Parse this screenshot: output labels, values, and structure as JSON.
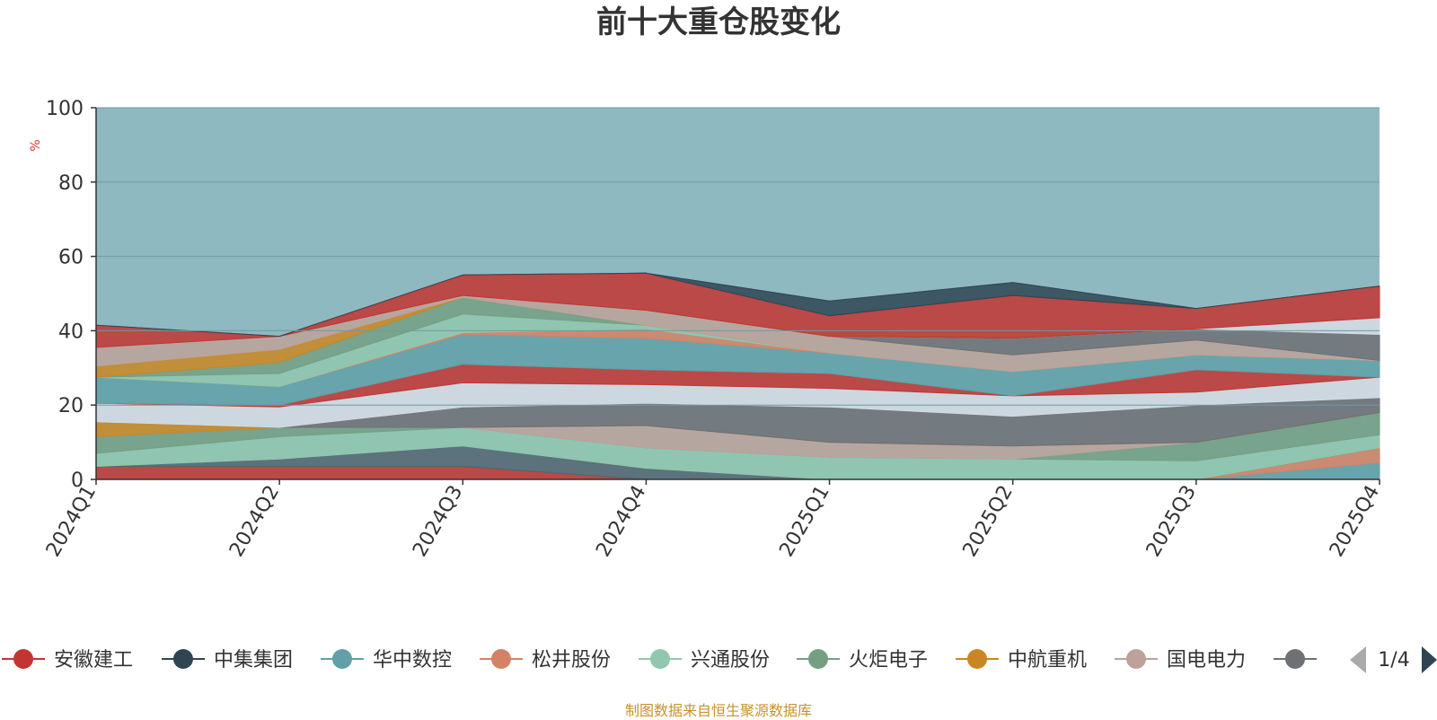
{
  "source_note": "制图数据来自恒生聚源数据库",
  "legend_page": "1/4",
  "colors": {
    "ylabel": "#e03030",
    "source": "#c8922a",
    "background_area": "#8fb9c0",
    "pager_active": "#2f4554",
    "pager_inactive": "#aaaaaa"
  },
  "legend_items": [
    {
      "label": "安徽建工",
      "color": "#c23531"
    },
    {
      "label": "中集集团",
      "color": "#2f4554"
    },
    {
      "label": "华中数控",
      "color": "#61a0a8"
    },
    {
      "label": "松井股份",
      "color": "#d48265"
    },
    {
      "label": "兴通股份",
      "color": "#91c7ae"
    },
    {
      "label": "火炬电子",
      "color": "#749f83"
    },
    {
      "label": "中航重机",
      "color": "#ca8622"
    },
    {
      "label": "国电电力",
      "color": "#bda29a"
    },
    {
      "label": "",
      "color": "#6e7074"
    }
  ],
  "chart_data": {
    "type": "area",
    "stacked": true,
    "title": "前十大重仓股变化",
    "ylabel": "%",
    "ylim": [
      0,
      100
    ],
    "yticks": [
      0,
      20,
      40,
      60,
      80,
      100
    ],
    "categories": [
      "2024Q1",
      "2024Q2",
      "2024Q3",
      "2024Q4",
      "2025Q1",
      "2025Q2",
      "2025Q3",
      "2025Q4"
    ],
    "grid": true,
    "top_fill_to": 100,
    "series": [
      {
        "color": "#61a0a8",
        "values": [
          0,
          0,
          0,
          0,
          0,
          0,
          0,
          4.5
        ]
      },
      {
        "color": "#d48265",
        "values": [
          0,
          0,
          0,
          0,
          0,
          0,
          0,
          4
        ]
      },
      {
        "color": "#c23531",
        "values": [
          3.5,
          3.5,
          3.5,
          0,
          0,
          0,
          0,
          0
        ]
      },
      {
        "color": "#546570",
        "values": [
          0,
          2,
          5.5,
          3,
          0,
          0,
          0,
          0
        ]
      },
      {
        "color": "#91c7ae",
        "values": [
          3.5,
          6,
          5,
          5.5,
          6,
          5.5,
          5,
          3.5
        ]
      },
      {
        "color": "#749f83",
        "values": [
          4.5,
          2.5,
          0,
          0,
          0,
          0,
          5,
          6
        ]
      },
      {
        "color": "#bda29a",
        "values": [
          0,
          0,
          0,
          6,
          4,
          3.5,
          0,
          0
        ]
      },
      {
        "color": "#ca8622",
        "values": [
          4,
          0,
          0,
          0,
          0,
          0,
          0,
          0
        ]
      },
      {
        "color": "#6e7074",
        "values": [
          0,
          0,
          5.5,
          6,
          9.5,
          8,
          10,
          4
        ]
      },
      {
        "color": "#d7dce4",
        "values": [
          5,
          5.5,
          6.5,
          5,
          5,
          5.5,
          3.5,
          5.5
        ]
      },
      {
        "color": "#c23531",
        "values": [
          0,
          0.5,
          5,
          4,
          4,
          0,
          6,
          0
        ]
      },
      {
        "color": "#61a0a8",
        "values": [
          7,
          5,
          8,
          8.5,
          5.5,
          6.5,
          4,
          4.5
        ]
      },
      {
        "color": "#d48265",
        "values": [
          0,
          0,
          0.5,
          2.5,
          0,
          0,
          0,
          0
        ]
      },
      {
        "color": "#91c7ae",
        "values": [
          0,
          3.5,
          5,
          1,
          0,
          0,
          0,
          0
        ]
      },
      {
        "color": "#749f83",
        "values": [
          0,
          3,
          4.5,
          0,
          0,
          0,
          0,
          0
        ]
      },
      {
        "color": "#ca8622",
        "values": [
          3,
          3.5,
          0,
          0,
          0,
          0,
          0,
          0
        ]
      },
      {
        "color": "#bda29a",
        "values": [
          5,
          3.5,
          0.5,
          4,
          4.5,
          4.5,
          4,
          0
        ]
      },
      {
        "color": "#6e7074",
        "values": [
          0,
          0,
          0,
          0,
          0,
          4.5,
          3,
          7
        ]
      },
      {
        "color": "#d7dce4",
        "values": [
          0,
          0,
          0,
          0,
          0,
          0,
          0,
          4.5
        ]
      },
      {
        "color": "#c23531",
        "values": [
          6,
          0,
          5.5,
          10,
          5.5,
          11.5,
          5.5,
          8.5
        ]
      },
      {
        "color": "#2f4554",
        "values": [
          0,
          0,
          0,
          0,
          4,
          3.5,
          0,
          0
        ]
      }
    ]
  }
}
